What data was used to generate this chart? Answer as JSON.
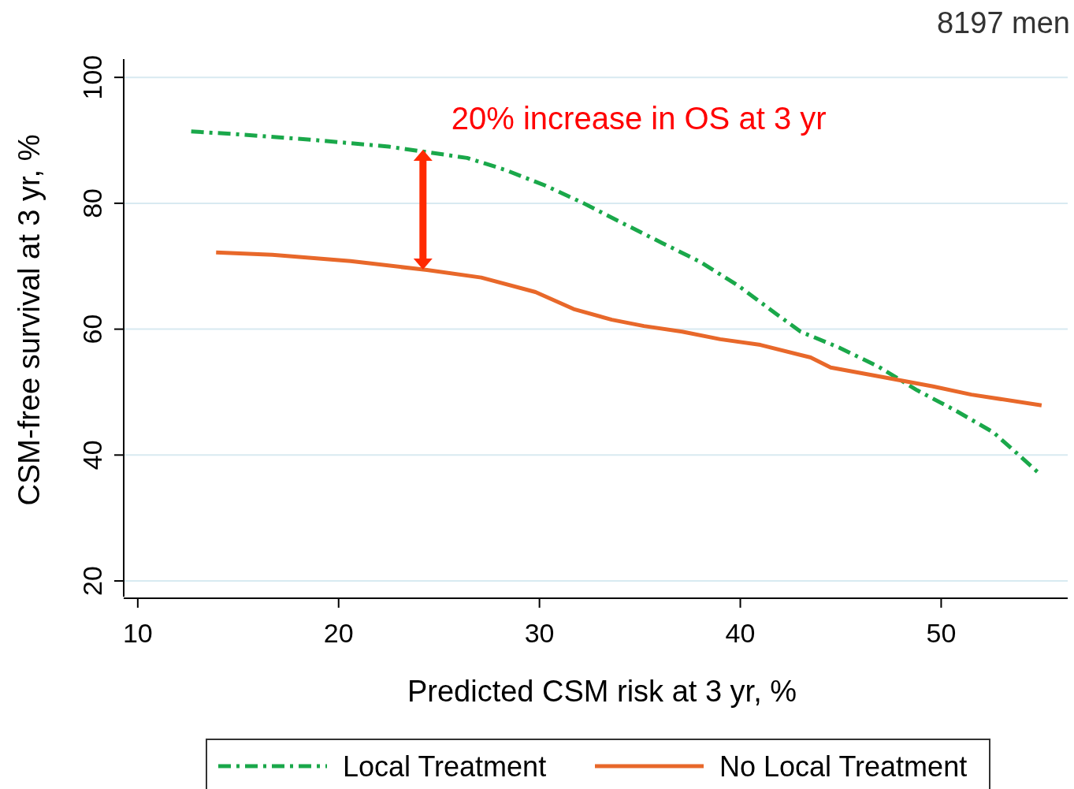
{
  "chart_data": {
    "type": "line",
    "xlabel": "Predicted CSM risk at 3 yr, %",
    "ylabel": "CSM-free survival at 3 yr, %",
    "xlim": [
      9.3,
      56.3
    ],
    "xticks": [
      10,
      20,
      30,
      40,
      50
    ],
    "ylim": [
      17.5,
      102.9
    ],
    "yticks": [
      20,
      40,
      60,
      80,
      100
    ],
    "grid": "y",
    "legend": "bottom",
    "annotations": [
      {
        "text": "20% increase in OS at 3 yr",
        "x": 24.2,
        "y": 88.5
      },
      "8197 men"
    ],
    "series": [
      {
        "name": "Local Treatment",
        "color": "#1aa84a",
        "line_style": "dashed",
        "x": [
          12.66,
          14.8,
          18.6,
          22.5,
          26.4,
          28.3,
          30.3,
          32.2,
          34.1,
          36.1,
          38.0,
          39.9,
          41.8,
          43.0,
          44.9,
          46.9,
          48.8,
          50.7,
          52.6,
          53.8,
          54.8
        ],
        "values": [
          91.4,
          91.0,
          90.1,
          89.0,
          87.2,
          85.3,
          82.8,
          80.0,
          76.9,
          73.7,
          70.7,
          66.9,
          62.4,
          59.6,
          57.1,
          54.0,
          50.3,
          47.1,
          43.6,
          40.2,
          37.3
        ]
      },
      {
        "name": "No Local Treatment",
        "color": "#e8682a",
        "line_style": "solid",
        "x": [
          13.9,
          16.7,
          20.6,
          24.4,
          27.1,
          29.8,
          31.7,
          33.6,
          35.2,
          37.1,
          39.0,
          41.0,
          43.5,
          44.5,
          46.9,
          49.6,
          51.5,
          55.0
        ],
        "values": [
          72.2,
          71.8,
          70.8,
          69.4,
          68.2,
          65.9,
          63.2,
          61.5,
          60.5,
          59.6,
          58.4,
          57.5,
          55.5,
          53.9,
          52.5,
          50.9,
          49.6,
          47.9
        ]
      }
    ]
  }
}
